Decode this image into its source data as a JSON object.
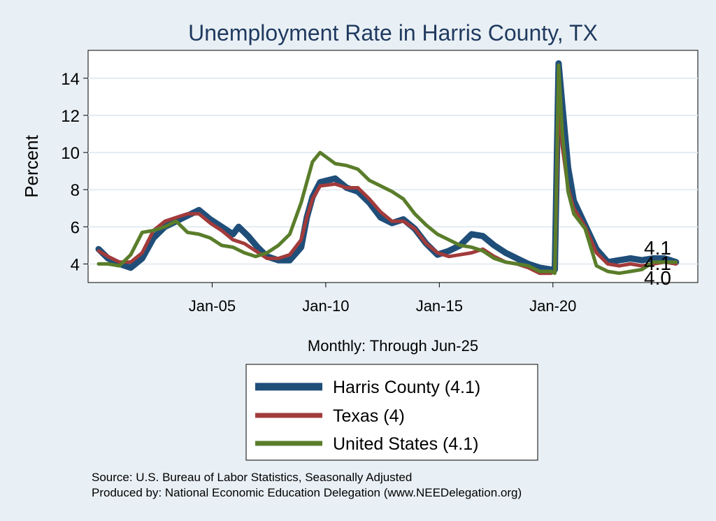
{
  "chart_data": {
    "type": "line",
    "title": "Unemployment Rate in Harris  County, TX",
    "ylabel": "Percent",
    "xlabel": "Monthly: Through Jun-25",
    "ylim": [
      3.0,
      15.5
    ],
    "yticks": [
      4,
      6,
      8,
      10,
      12,
      14
    ],
    "xlim": [
      "2000-01",
      "2025-12"
    ],
    "xticks": [
      {
        "date": "2005-01",
        "label": "Jan-05"
      },
      {
        "date": "2010-01",
        "label": "Jan-10"
      },
      {
        "date": "2015-01",
        "label": "Jan-15"
      },
      {
        "date": "2020-01",
        "label": "Jan-20"
      }
    ],
    "grid": true,
    "legend_position": "bottom",
    "end_labels": [
      "4.1",
      "4.1",
      "4.0"
    ],
    "series": [
      {
        "name": "Harris  County (4.1)",
        "color": "#1f4e79",
        "points": [
          [
            "2000-01",
            4.8
          ],
          [
            "2000-06",
            4.3
          ],
          [
            "2000-12",
            4.0
          ],
          [
            "2001-06",
            3.8
          ],
          [
            "2001-12",
            4.3
          ],
          [
            "2002-06",
            5.4
          ],
          [
            "2002-12",
            6.0
          ],
          [
            "2003-06",
            6.3
          ],
          [
            "2003-12",
            6.6
          ],
          [
            "2004-06",
            6.9
          ],
          [
            "2004-12",
            6.4
          ],
          [
            "2005-06",
            6.0
          ],
          [
            "2005-12",
            5.6
          ],
          [
            "2006-03",
            6.0
          ],
          [
            "2006-08",
            5.5
          ],
          [
            "2007-01",
            4.9
          ],
          [
            "2007-06",
            4.4
          ],
          [
            "2007-12",
            4.2
          ],
          [
            "2008-06",
            4.2
          ],
          [
            "2008-12",
            4.9
          ],
          [
            "2009-03",
            6.5
          ],
          [
            "2009-06",
            7.6
          ],
          [
            "2009-10",
            8.4
          ],
          [
            "2010-06",
            8.6
          ],
          [
            "2010-12",
            8.1
          ],
          [
            "2011-06",
            7.9
          ],
          [
            "2011-12",
            7.3
          ],
          [
            "2012-06",
            6.5
          ],
          [
            "2012-12",
            6.2
          ],
          [
            "2013-06",
            6.4
          ],
          [
            "2013-12",
            5.9
          ],
          [
            "2014-06",
            5.1
          ],
          [
            "2014-12",
            4.5
          ],
          [
            "2015-06",
            4.7
          ],
          [
            "2015-12",
            5.0
          ],
          [
            "2016-06",
            5.6
          ],
          [
            "2016-12",
            5.5
          ],
          [
            "2017-06",
            5.0
          ],
          [
            "2017-12",
            4.6
          ],
          [
            "2018-06",
            4.3
          ],
          [
            "2018-12",
            4.0
          ],
          [
            "2019-06",
            3.8
          ],
          [
            "2019-12",
            3.7
          ],
          [
            "2020-02",
            3.7
          ],
          [
            "2020-04",
            14.8
          ],
          [
            "2020-06",
            12.5
          ],
          [
            "2020-09",
            9.2
          ],
          [
            "2020-12",
            7.4
          ],
          [
            "2021-06",
            6.1
          ],
          [
            "2021-12",
            4.8
          ],
          [
            "2022-06",
            4.1
          ],
          [
            "2022-12",
            4.2
          ],
          [
            "2023-06",
            4.3
          ],
          [
            "2023-12",
            4.2
          ],
          [
            "2024-06",
            4.3
          ],
          [
            "2024-12",
            4.3
          ],
          [
            "2025-06",
            4.1
          ]
        ]
      },
      {
        "name": "Texas (4)",
        "color": "#a23b3b",
        "points": [
          [
            "2000-01",
            4.7
          ],
          [
            "2000-06",
            4.4
          ],
          [
            "2000-12",
            4.1
          ],
          [
            "2001-06",
            4.1
          ],
          [
            "2001-12",
            4.6
          ],
          [
            "2002-06",
            5.8
          ],
          [
            "2002-12",
            6.3
          ],
          [
            "2003-06",
            6.5
          ],
          [
            "2003-12",
            6.7
          ],
          [
            "2004-06",
            6.7
          ],
          [
            "2004-12",
            6.2
          ],
          [
            "2005-06",
            5.8
          ],
          [
            "2005-12",
            5.3
          ],
          [
            "2006-06",
            5.1
          ],
          [
            "2006-12",
            4.7
          ],
          [
            "2007-06",
            4.3
          ],
          [
            "2007-12",
            4.3
          ],
          [
            "2008-06",
            4.5
          ],
          [
            "2008-12",
            5.3
          ],
          [
            "2009-03",
            6.5
          ],
          [
            "2009-06",
            7.5
          ],
          [
            "2009-10",
            8.2
          ],
          [
            "2010-06",
            8.3
          ],
          [
            "2010-12",
            8.1
          ],
          [
            "2011-06",
            8.1
          ],
          [
            "2011-12",
            7.5
          ],
          [
            "2012-06",
            6.8
          ],
          [
            "2012-12",
            6.3
          ],
          [
            "2013-06",
            6.3
          ],
          [
            "2013-12",
            5.9
          ],
          [
            "2014-06",
            5.1
          ],
          [
            "2014-12",
            4.6
          ],
          [
            "2015-06",
            4.4
          ],
          [
            "2015-12",
            4.5
          ],
          [
            "2016-06",
            4.6
          ],
          [
            "2016-12",
            4.8
          ],
          [
            "2017-06",
            4.4
          ],
          [
            "2017-12",
            4.1
          ],
          [
            "2018-06",
            4.0
          ],
          [
            "2018-12",
            3.8
          ],
          [
            "2019-06",
            3.5
          ],
          [
            "2019-12",
            3.5
          ],
          [
            "2020-02",
            3.6
          ],
          [
            "2020-04",
            12.8
          ],
          [
            "2020-06",
            10.3
          ],
          [
            "2020-09",
            8.1
          ],
          [
            "2020-12",
            7.0
          ],
          [
            "2021-06",
            6.0
          ],
          [
            "2021-12",
            4.6
          ],
          [
            "2022-06",
            4.0
          ],
          [
            "2022-12",
            3.9
          ],
          [
            "2023-06",
            4.0
          ],
          [
            "2023-12",
            3.9
          ],
          [
            "2024-06",
            4.0
          ],
          [
            "2024-12",
            4.1
          ],
          [
            "2025-06",
            4.0
          ]
        ]
      },
      {
        "name": "United States (4.1)",
        "color": "#5a7d2a",
        "points": [
          [
            "2000-01",
            4.0
          ],
          [
            "2000-06",
            4.0
          ],
          [
            "2000-12",
            3.9
          ],
          [
            "2001-06",
            4.5
          ],
          [
            "2001-12",
            5.7
          ],
          [
            "2002-06",
            5.8
          ],
          [
            "2002-12",
            6.0
          ],
          [
            "2003-06",
            6.3
          ],
          [
            "2003-12",
            5.7
          ],
          [
            "2004-06",
            5.6
          ],
          [
            "2004-12",
            5.4
          ],
          [
            "2005-06",
            5.0
          ],
          [
            "2005-12",
            4.9
          ],
          [
            "2006-06",
            4.6
          ],
          [
            "2006-12",
            4.4
          ],
          [
            "2007-06",
            4.6
          ],
          [
            "2007-12",
            5.0
          ],
          [
            "2008-06",
            5.6
          ],
          [
            "2008-12",
            7.3
          ],
          [
            "2009-06",
            9.5
          ],
          [
            "2009-10",
            10.0
          ],
          [
            "2010-06",
            9.4
          ],
          [
            "2010-12",
            9.3
          ],
          [
            "2011-06",
            9.1
          ],
          [
            "2011-12",
            8.5
          ],
          [
            "2012-06",
            8.2
          ],
          [
            "2012-12",
            7.9
          ],
          [
            "2013-06",
            7.5
          ],
          [
            "2013-12",
            6.7
          ],
          [
            "2014-06",
            6.1
          ],
          [
            "2014-12",
            5.6
          ],
          [
            "2015-06",
            5.3
          ],
          [
            "2015-12",
            5.0
          ],
          [
            "2016-06",
            4.9
          ],
          [
            "2016-12",
            4.7
          ],
          [
            "2017-06",
            4.3
          ],
          [
            "2017-12",
            4.1
          ],
          [
            "2018-06",
            4.0
          ],
          [
            "2018-12",
            3.9
          ],
          [
            "2019-06",
            3.6
          ],
          [
            "2019-12",
            3.6
          ],
          [
            "2020-02",
            3.5
          ],
          [
            "2020-04",
            14.7
          ],
          [
            "2020-06",
            11.0
          ],
          [
            "2020-09",
            7.9
          ],
          [
            "2020-12",
            6.7
          ],
          [
            "2021-06",
            5.9
          ],
          [
            "2021-12",
            3.9
          ],
          [
            "2022-06",
            3.6
          ],
          [
            "2022-12",
            3.5
          ],
          [
            "2023-06",
            3.6
          ],
          [
            "2023-12",
            3.7
          ],
          [
            "2024-06",
            4.1
          ],
          [
            "2024-12",
            4.1
          ],
          [
            "2025-06",
            4.1
          ]
        ]
      }
    ]
  },
  "source_note": "Source: U.S. Bureau of Labor Statistics, Seasonally Adjusted",
  "producer_note": "Produced by: National Economic Education Delegation (www.NEEDelegation.org)"
}
